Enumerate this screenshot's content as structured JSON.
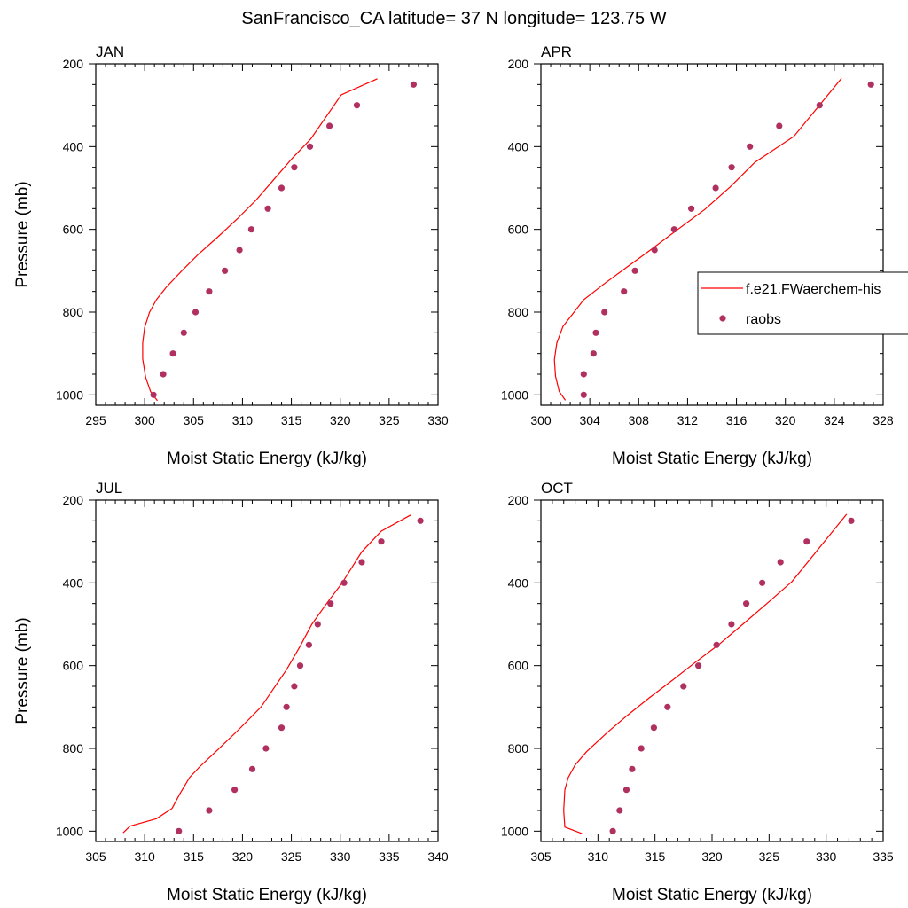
{
  "title": "SanFrancisco_CA  latitude= 37 N longitude= 123.75 W",
  "legend": {
    "model_label": "f.e21.FWaerchem-his",
    "obs_label": "raobs",
    "model_color": "#ff0000",
    "obs_color": "#b03060"
  },
  "chart_data": [
    {
      "type": "line",
      "panel": "JAN",
      "xlabel": "Moist Static Energy (kJ/kg)",
      "ylabel": "Pressure (mb)",
      "xlim": [
        295,
        330
      ],
      "ylim": [
        1025,
        200
      ],
      "xticks": [
        295,
        300,
        305,
        310,
        315,
        320,
        325,
        330
      ],
      "yticks": [
        200,
        400,
        600,
        800,
        1000
      ],
      "model": {
        "name": "f.e21.FWaerchem-his",
        "x": [
          301.3,
          300.6,
          300.1,
          299.8,
          299.8,
          300.0,
          300.5,
          301.2,
          302.2,
          303.8,
          305.5,
          307.4,
          309.5,
          311.4,
          313.3,
          315.1,
          317.0,
          320.1,
          323.8
        ],
        "y": [
          1014,
          992,
          957,
          913,
          875,
          837,
          800,
          770,
          740,
          700,
          660,
          620,
          574,
          529,
          477,
          428,
          381,
          275,
          236
        ]
      },
      "raobs": {
        "name": "raobs",
        "x": [
          300.9,
          301.9,
          302.9,
          304.0,
          305.2,
          306.6,
          308.2,
          309.7,
          310.9,
          312.6,
          314.0,
          315.3,
          316.9,
          318.9,
          321.7,
          327.5
        ],
        "y": [
          1000,
          950,
          900,
          850,
          800,
          750,
          700,
          650,
          600,
          550,
          500,
          450,
          400,
          350,
          300,
          250
        ]
      }
    },
    {
      "type": "line",
      "panel": "APR",
      "xlabel": "Moist Static Energy (kJ/kg)",
      "ylabel": "",
      "xlim": [
        300,
        328
      ],
      "ylim": [
        1025,
        200
      ],
      "xticks": [
        300,
        304,
        308,
        312,
        316,
        320,
        324,
        328
      ],
      "yticks": [
        200,
        400,
        600,
        800,
        1000
      ],
      "model": {
        "name": "f.e21.FWaerchem-his",
        "x": [
          302.0,
          301.5,
          301.2,
          301.1,
          301.3,
          301.8,
          302.5,
          303.5,
          305.2,
          307.0,
          309.0,
          311.2,
          313.4,
          315.5,
          317.5,
          320.7,
          324.6
        ],
        "y": [
          1013,
          992,
          955,
          915,
          875,
          835,
          808,
          770,
          731,
          692,
          649,
          600,
          552,
          497,
          438,
          375,
          235
        ]
      },
      "raobs": {
        "name": "raobs",
        "x": [
          303.5,
          303.5,
          304.3,
          304.5,
          305.2,
          306.8,
          307.7,
          309.3,
          310.9,
          312.3,
          314.3,
          315.6,
          317.1,
          319.5,
          322.8,
          327.0
        ],
        "y": [
          1000,
          950,
          900,
          850,
          800,
          750,
          700,
          650,
          600,
          550,
          500,
          450,
          400,
          350,
          300,
          250
        ]
      }
    },
    {
      "type": "line",
      "panel": "JUL",
      "xlabel": "Moist Static Energy (kJ/kg)",
      "ylabel": "Pressure (mb)",
      "xlim": [
        305,
        340
      ],
      "ylim": [
        1025,
        200
      ],
      "xticks": [
        305,
        310,
        315,
        320,
        325,
        330,
        335,
        340
      ],
      "yticks": [
        200,
        400,
        600,
        800,
        1000
      ],
      "model": {
        "name": "f.e21.FWaerchem-his",
        "x": [
          307.8,
          308.5,
          311.2,
          312.8,
          313.6,
          314.6,
          315.6,
          317.4,
          319.6,
          321.9,
          323.2,
          324.5,
          325.9,
          327.1,
          328.6,
          330.2,
          332.2,
          334.2,
          337.2
        ],
        "y": [
          1004,
          988,
          970,
          945,
          910,
          870,
          845,
          805,
          755,
          700,
          655,
          610,
          553,
          500,
          450,
          400,
          325,
          275,
          236
        ]
      },
      "raobs": {
        "name": "raobs",
        "x": [
          313.5,
          316.6,
          319.2,
          321.0,
          322.4,
          324.0,
          324.5,
          325.3,
          325.9,
          326.8,
          327.7,
          329.0,
          330.4,
          332.2,
          334.2,
          338.2
        ],
        "y": [
          1000,
          950,
          900,
          850,
          800,
          750,
          700,
          650,
          600,
          550,
          500,
          450,
          400,
          350,
          300,
          250
        ]
      }
    },
    {
      "type": "line",
      "panel": "OCT",
      "xlabel": "Moist Static Energy (kJ/kg)",
      "ylabel": "",
      "xlim": [
        305,
        335
      ],
      "ylim": [
        1025,
        200
      ],
      "xticks": [
        305,
        310,
        315,
        320,
        325,
        330,
        335
      ],
      "yticks": [
        200,
        400,
        600,
        800,
        1000
      ],
      "model": {
        "name": "f.e21.FWaerchem-his",
        "x": [
          308.6,
          307.1,
          307.0,
          307.1,
          307.4,
          308.0,
          309.0,
          310.8,
          312.5,
          314.4,
          316.4,
          318.4,
          320.6,
          322.7,
          324.9,
          327.0,
          331.8
        ],
        "y": [
          1006,
          990,
          950,
          900,
          870,
          840,
          808,
          762,
          722,
          680,
          638,
          595,
          549,
          500,
          448,
          397,
          234
        ]
      },
      "raobs": {
        "name": "raobs",
        "x": [
          311.3,
          311.9,
          312.5,
          313.0,
          313.8,
          314.9,
          316.1,
          317.5,
          318.8,
          320.4,
          321.7,
          323.0,
          324.4,
          326.0,
          328.3,
          332.2
        ],
        "y": [
          1000,
          950,
          900,
          850,
          800,
          750,
          700,
          650,
          600,
          550,
          500,
          450,
          400,
          350,
          300,
          250
        ]
      }
    }
  ]
}
